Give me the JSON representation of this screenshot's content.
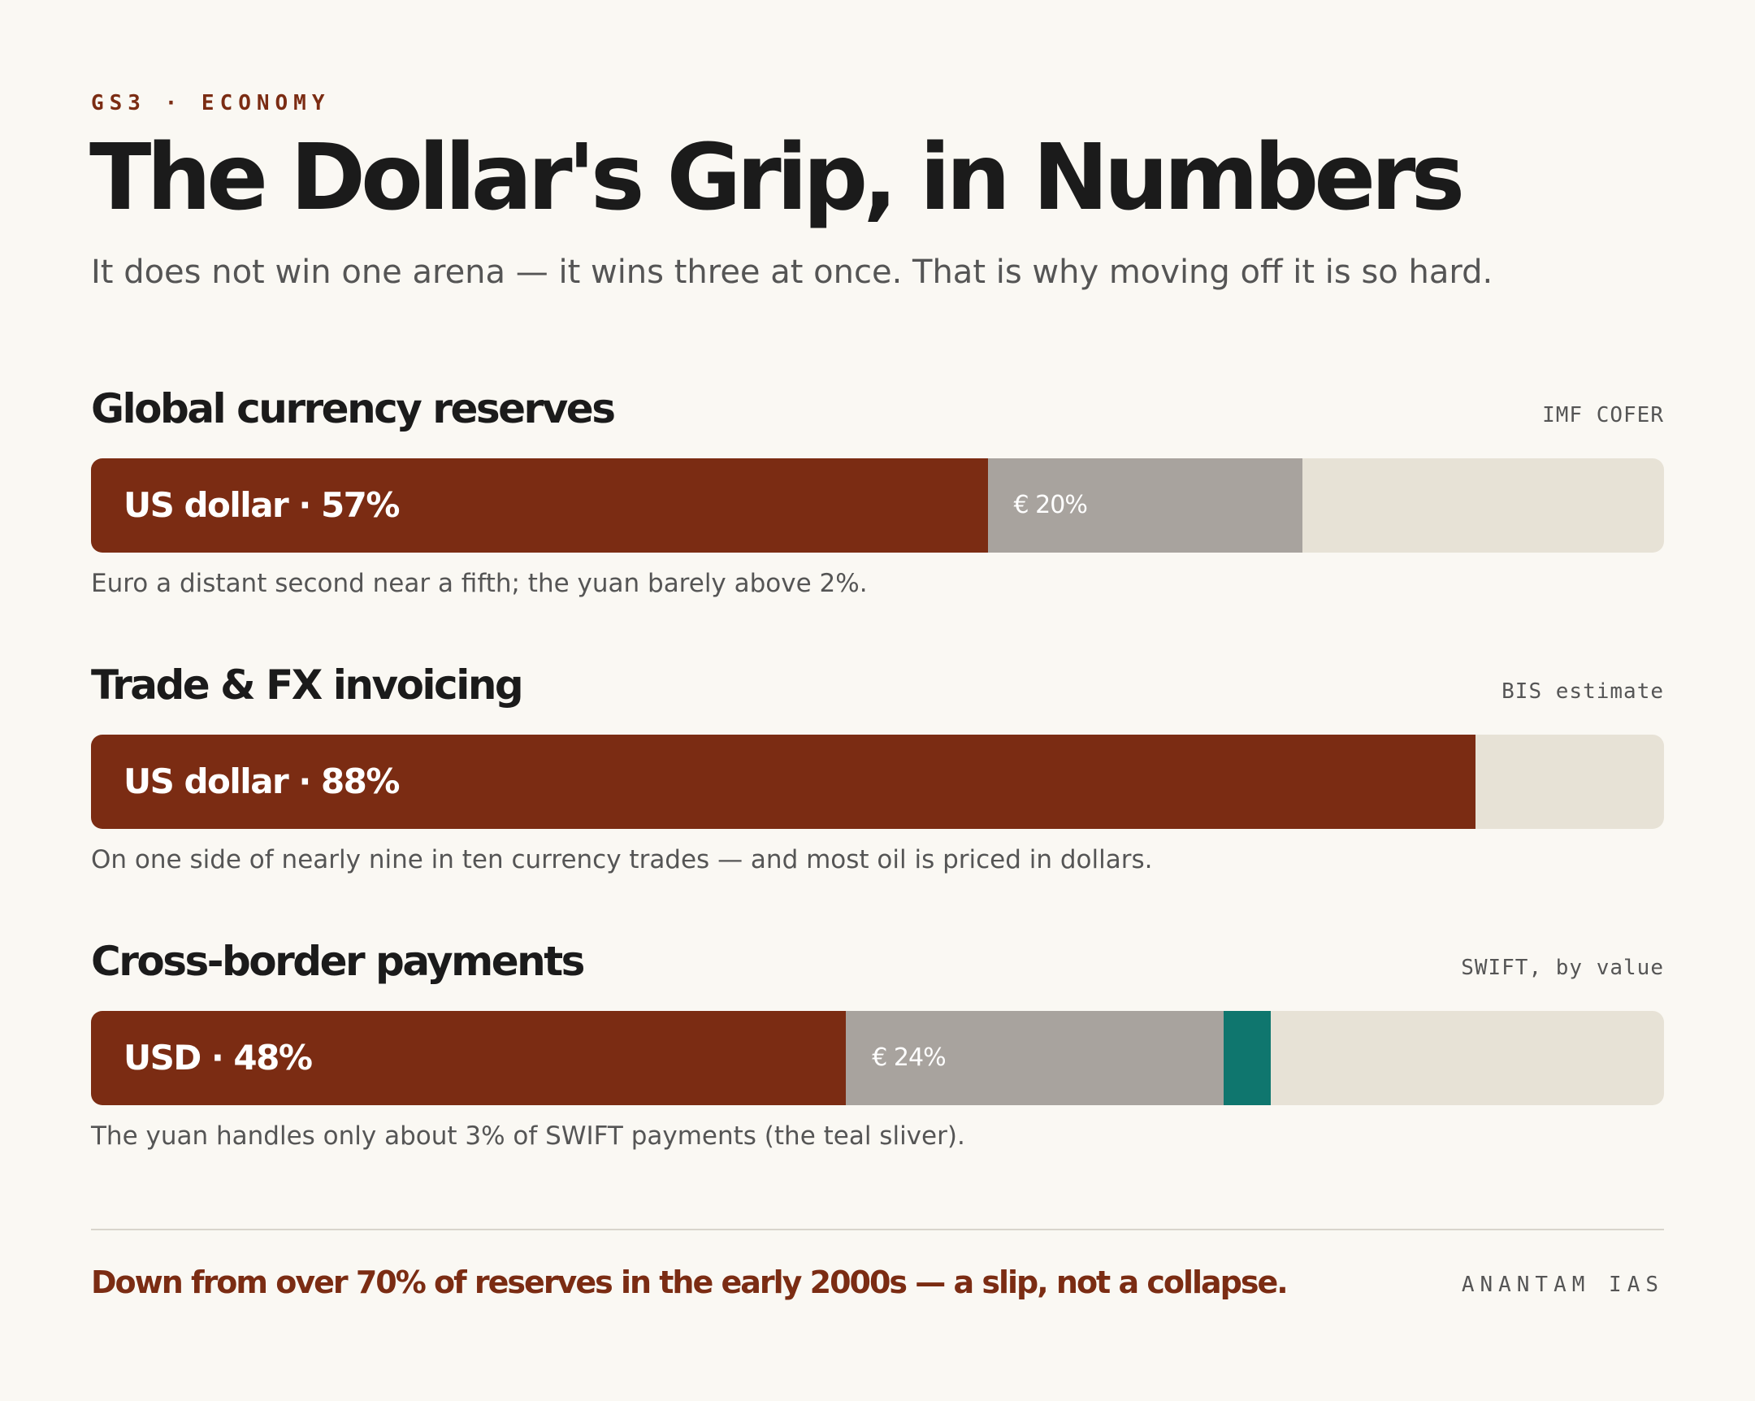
{
  "header": {
    "kicker": "GS3 · ECONOMY",
    "title": "The Dollar's Grip, in Numbers",
    "subtitle": "It does not win one arena — it wins three at once. That is why moving off it is so hard."
  },
  "colors": {
    "usd": "#7b2c13",
    "eur": "#a8a39e",
    "cny": "#0f766e",
    "track": "#e7e2d6"
  },
  "chart_data": [
    {
      "type": "bar",
      "title": "Global currency reserves",
      "source": "IMF COFER",
      "orientation": "horizontal-stacked",
      "unit": "%",
      "xlim": [
        0,
        100
      ],
      "segments": [
        {
          "key": "usd",
          "label": "US dollar · 57%",
          "value": 57
        },
        {
          "key": "eur",
          "label": "€ 20%",
          "value": 20
        }
      ],
      "note": "Euro a distant second near a fifth; the yuan barely above 2%."
    },
    {
      "type": "bar",
      "title": "Trade & FX invoicing",
      "source": "BIS estimate",
      "orientation": "horizontal-stacked",
      "unit": "%",
      "xlim": [
        0,
        100
      ],
      "segments": [
        {
          "key": "usd",
          "label": "US dollar · 88%",
          "value": 88
        }
      ],
      "note": "On one side of nearly nine in ten currency trades — and most oil is priced in dollars."
    },
    {
      "type": "bar",
      "title": "Cross-border payments",
      "source": "SWIFT, by value",
      "orientation": "horizontal-stacked",
      "unit": "%",
      "xlim": [
        0,
        100
      ],
      "segments": [
        {
          "key": "usd",
          "label": "USD · 48%",
          "value": 48
        },
        {
          "key": "eur",
          "label": "€ 24%",
          "value": 24
        },
        {
          "key": "cny",
          "label": "",
          "value": 3
        }
      ],
      "note": "The yuan handles only about 3% of SWIFT payments (the teal sliver)."
    }
  ],
  "footer": {
    "takeaway": "Down from over 70% of reserves in the early 2000s — a slip, not a collapse.",
    "brand": "ANANTAM IAS"
  }
}
